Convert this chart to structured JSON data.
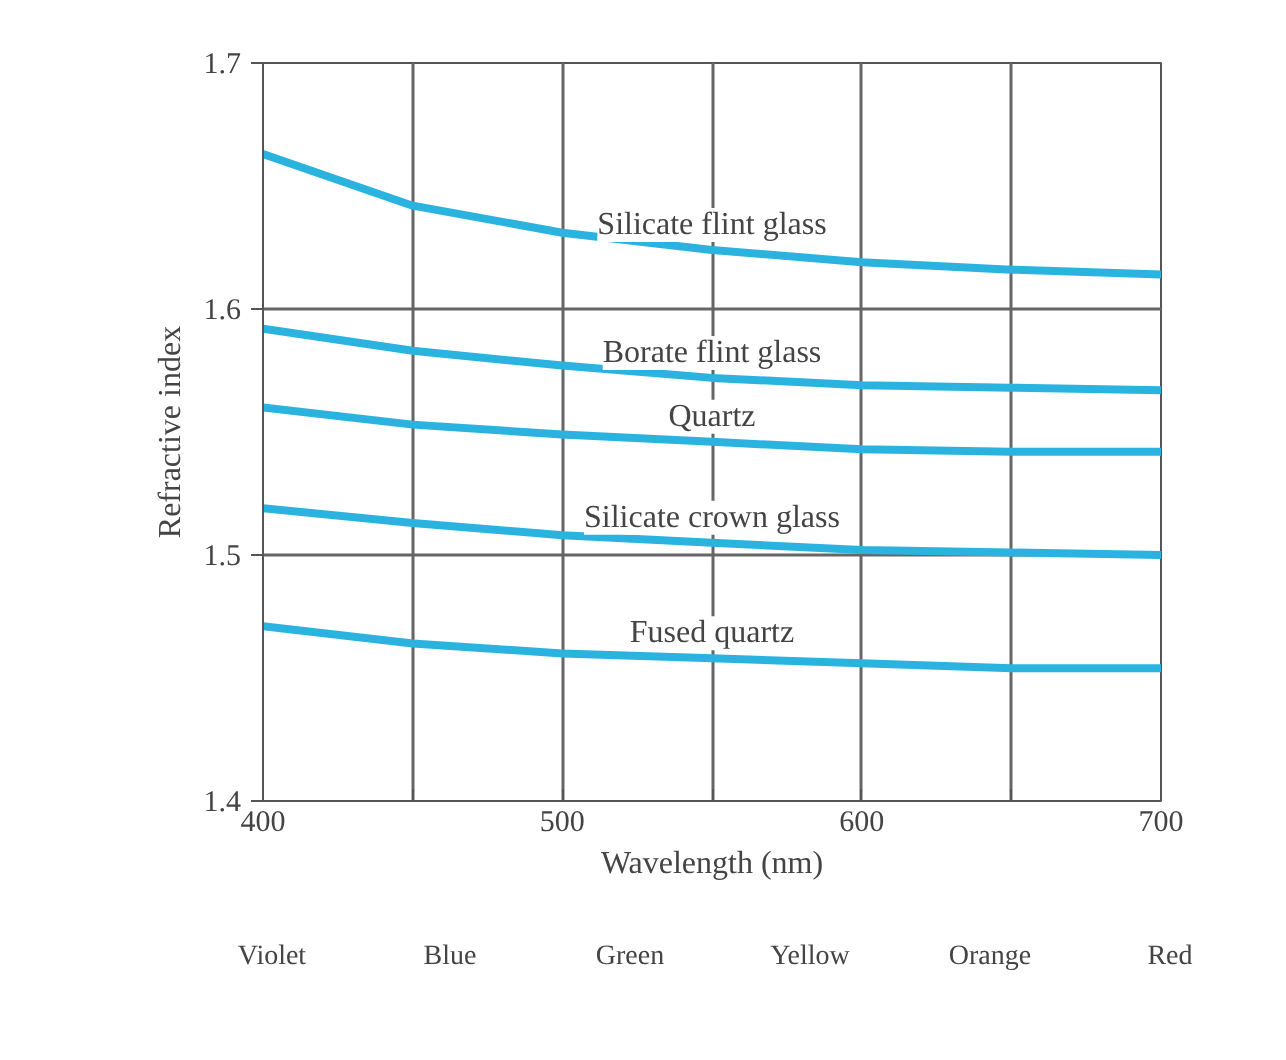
{
  "chart_data": {
    "type": "line",
    "xlabel": "Wavelength (nm)",
    "ylabel": "Refractive index",
    "x": [
      400,
      450,
      500,
      550,
      600,
      650,
      700
    ],
    "xlim": [
      400,
      700
    ],
    "ylim": [
      1.4,
      1.7
    ],
    "xticks": [
      400,
      {
        "value": 450,
        "label": null
      },
      500,
      {
        "value": 550,
        "label": null
      },
      600,
      {
        "value": 650,
        "label": null
      },
      700
    ],
    "yticks": [
      1.4,
      1.5,
      1.6,
      1.7
    ],
    "grid": true,
    "marker": "none",
    "line_style": "solid",
    "series": [
      {
        "name": "Silicate flint glass",
        "color": "#2bb3e0",
        "values": [
          1.663,
          1.642,
          1.631,
          1.624,
          1.619,
          1.616,
          1.614
        ]
      },
      {
        "name": "Borate flint glass",
        "color": "#2bb3e0",
        "values": [
          1.592,
          1.583,
          1.577,
          1.572,
          1.569,
          1.568,
          1.567
        ]
      },
      {
        "name": "Quartz",
        "color": "#2bb3e0",
        "values": [
          1.56,
          1.553,
          1.549,
          1.546,
          1.543,
          1.542,
          1.542
        ]
      },
      {
        "name": "Silicate crown glass",
        "color": "#2bb3e0",
        "values": [
          1.519,
          1.513,
          1.508,
          1.505,
          1.502,
          1.501,
          1.5
        ]
      },
      {
        "name": "Fused quartz",
        "color": "#2bb3e0",
        "values": [
          1.471,
          1.464,
          1.46,
          1.458,
          1.456,
          1.454,
          1.454
        ]
      }
    ],
    "annotations": [
      "Violet",
      "Blue",
      "Green",
      "Yellow",
      "Orange",
      "Red"
    ]
  }
}
